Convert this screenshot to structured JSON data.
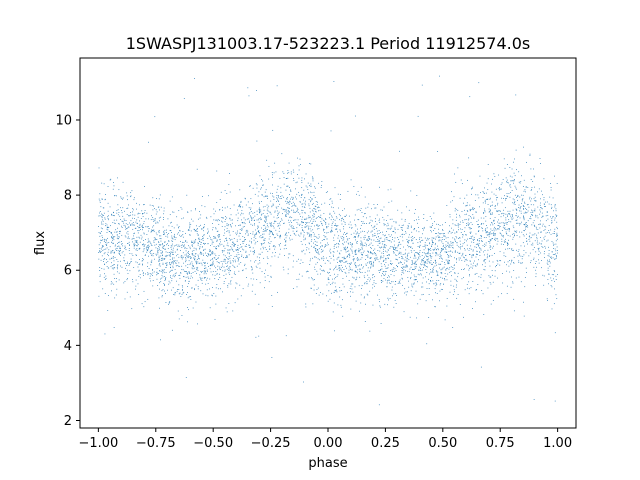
{
  "chart_data": {
    "type": "scatter",
    "title": "1SWASPJ131003.17-523223.1 Period 11912574.0s",
    "xlabel": "phase",
    "ylabel": "flux",
    "xlim": [
      -1.08,
      1.08
    ],
    "ylim": [
      1.8,
      11.65
    ],
    "xticks": [
      -1.0,
      -0.75,
      -0.5,
      -0.25,
      0.0,
      0.25,
      0.5,
      0.75,
      1.0
    ],
    "xtick_labels": [
      "−1.00",
      "−0.75",
      "−0.50",
      "−0.25",
      "0.00",
      "0.25",
      "0.50",
      "0.75",
      "1.00"
    ],
    "yticks": [
      2,
      4,
      6,
      8,
      10
    ],
    "ytick_labels": [
      "2",
      "4",
      "6",
      "8",
      "10"
    ],
    "grid": false,
    "point_color": "#1f77b4",
    "series": [
      {
        "name": "",
        "phase_range": [
          -1.0,
          1.0
        ],
        "note_on_values": "",
        "profile_phase": [
          -1.0,
          -0.9,
          -0.8,
          -0.7,
          -0.6,
          -0.5,
          -0.4,
          -0.3,
          -0.2,
          -0.1,
          0.0,
          0.1,
          0.2,
          0.3,
          0.4,
          0.5,
          0.6,
          0.7,
          0.8,
          0.9,
          1.0
        ],
        "profile_flux_median": [
          6.8,
          6.9,
          6.8,
          6.4,
          6.4,
          6.5,
          6.6,
          7.0,
          7.5,
          7.3,
          6.6,
          6.5,
          6.6,
          6.4,
          6.3,
          6.4,
          6.8,
          6.9,
          7.4,
          7.3,
          6.8
        ],
        "profile_flux_spread": [
          1.3,
          1.2,
          1.2,
          1.1,
          1.1,
          1.1,
          1.2,
          1.3,
          1.3,
          1.3,
          1.4,
          1.2,
          1.2,
          1.1,
          1.0,
          1.1,
          1.2,
          1.3,
          1.4,
          1.3,
          1.3
        ]
      }
    ]
  }
}
